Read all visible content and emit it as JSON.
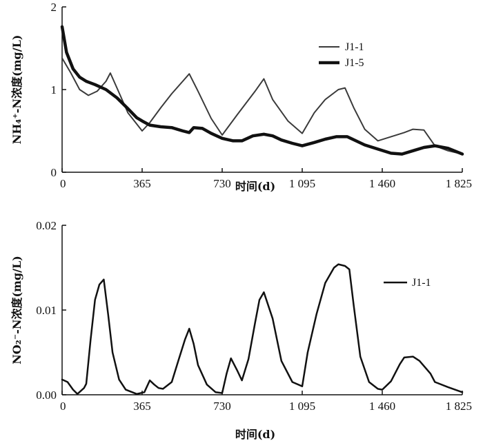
{
  "chart_data": [
    {
      "type": "line",
      "title": "",
      "xlabel": "时间(d)",
      "ylabel": "NH₄⁺-N浓度(mg/L)",
      "xlim": [
        0,
        1825
      ],
      "ylim": [
        0,
        2
      ],
      "x_ticks": [
        0,
        365,
        730,
        1095,
        1460,
        1825
      ],
      "x_tick_labels": [
        "0",
        "365",
        "730",
        "1 095",
        "1 460",
        "1 825"
      ],
      "y_ticks": [
        0,
        1,
        2
      ],
      "y_tick_labels": [
        "0",
        "1",
        "2"
      ],
      "legend_position": "top-right",
      "series": [
        {
          "name": "J1-1",
          "x": [
            0,
            40,
            80,
            120,
            160,
            200,
            220,
            250,
            300,
            365,
            400,
            450,
            500,
            550,
            580,
            620,
            680,
            730,
            800,
            880,
            920,
            960,
            1030,
            1095,
            1150,
            1200,
            1260,
            1290,
            1330,
            1380,
            1440,
            1500,
            1560,
            1600,
            1650,
            1700,
            1760,
            1825
          ],
          "y": [
            1.38,
            1.2,
            1.0,
            0.93,
            0.98,
            1.1,
            1.2,
            1.02,
            0.72,
            0.5,
            0.6,
            0.78,
            0.95,
            1.1,
            1.19,
            0.98,
            0.65,
            0.45,
            0.7,
            0.98,
            1.13,
            0.88,
            0.62,
            0.47,
            0.72,
            0.88,
            1.0,
            1.02,
            0.78,
            0.52,
            0.38,
            0.43,
            0.48,
            0.52,
            0.51,
            0.32,
            0.26,
            0.22
          ]
        },
        {
          "name": "J1-5",
          "x": [
            0,
            20,
            50,
            80,
            110,
            150,
            200,
            250,
            300,
            340,
            365,
            400,
            450,
            500,
            550,
            580,
            600,
            640,
            680,
            730,
            780,
            820,
            870,
            920,
            960,
            1000,
            1050,
            1095,
            1150,
            1200,
            1250,
            1300,
            1340,
            1380,
            1440,
            1500,
            1550,
            1600,
            1650,
            1700,
            1760,
            1825
          ],
          "y": [
            1.76,
            1.45,
            1.25,
            1.15,
            1.1,
            1.06,
            1.0,
            0.9,
            0.77,
            0.66,
            0.62,
            0.57,
            0.55,
            0.54,
            0.5,
            0.48,
            0.54,
            0.53,
            0.47,
            0.41,
            0.38,
            0.38,
            0.44,
            0.46,
            0.44,
            0.39,
            0.35,
            0.32,
            0.36,
            0.4,
            0.43,
            0.43,
            0.38,
            0.33,
            0.28,
            0.23,
            0.22,
            0.26,
            0.3,
            0.32,
            0.29,
            0.22
          ]
        }
      ]
    },
    {
      "type": "line",
      "title": "",
      "xlabel": "时间(d)",
      "ylabel": "NO₂⁻-N浓度(mg/L)",
      "xlim": [
        0,
        1825
      ],
      "ylim": [
        0,
        0.02
      ],
      "x_ticks": [
        0,
        365,
        730,
        1095,
        1460,
        1825
      ],
      "x_tick_labels": [
        "0",
        "365",
        "730",
        "1 095",
        "1 460",
        "1 825"
      ],
      "y_ticks": [
        0,
        0.01,
        0.02
      ],
      "y_tick_labels": [
        "0.00",
        "0.01",
        "0.02"
      ],
      "legend_position": "top-right",
      "series": [
        {
          "name": "J1-1",
          "x": [
            0,
            25,
            50,
            70,
            100,
            110,
            130,
            150,
            170,
            190,
            210,
            230,
            260,
            290,
            340,
            375,
            400,
            420,
            440,
            460,
            500,
            530,
            560,
            580,
            600,
            620,
            660,
            700,
            730,
            750,
            770,
            800,
            820,
            850,
            880,
            900,
            920,
            960,
            1000,
            1050,
            1095,
            1120,
            1160,
            1200,
            1240,
            1260,
            1290,
            1310,
            1330,
            1360,
            1400,
            1440,
            1460,
            1500,
            1540,
            1560,
            1600,
            1630,
            1680,
            1700,
            1760,
            1825
          ],
          "y": [
            0.0018,
            0.0015,
            0.0006,
            0.0001,
            0.0008,
            0.0013,
            0.0065,
            0.0112,
            0.013,
            0.0136,
            0.0095,
            0.005,
            0.0018,
            0.0006,
            0.0001,
            0.0003,
            0.0017,
            0.0012,
            0.0008,
            0.0007,
            0.0015,
            0.004,
            0.0065,
            0.0078,
            0.006,
            0.0035,
            0.0012,
            0.0003,
            0.0002,
            0.0025,
            0.0043,
            0.0028,
            0.0017,
            0.0042,
            0.0085,
            0.0112,
            0.0121,
            0.009,
            0.004,
            0.0015,
            0.001,
            0.005,
            0.0095,
            0.0132,
            0.015,
            0.0154,
            0.0152,
            0.0148,
            0.0105,
            0.0045,
            0.0015,
            0.0007,
            0.0006,
            0.0016,
            0.0036,
            0.0044,
            0.0045,
            0.004,
            0.0025,
            0.0015,
            0.0009,
            0.0003
          ]
        }
      ]
    }
  ]
}
